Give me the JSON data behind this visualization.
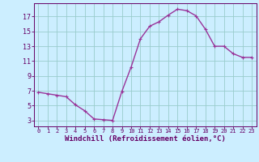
{
  "x": [
    0,
    1,
    2,
    3,
    4,
    5,
    6,
    7,
    8,
    9,
    10,
    11,
    12,
    13,
    14,
    15,
    16,
    17,
    18,
    19,
    20,
    21,
    22,
    23
  ],
  "y": [
    6.8,
    6.6,
    6.4,
    6.2,
    5.1,
    4.3,
    3.2,
    3.1,
    3.0,
    6.9,
    10.2,
    14.0,
    15.7,
    16.3,
    17.2,
    18.0,
    17.8,
    17.1,
    15.3,
    13.0,
    13.0,
    12.0,
    11.5,
    11.5
  ],
  "line_color": "#993399",
  "marker": "+",
  "bg_color": "#cceeff",
  "grid_color": "#99cccc",
  "axis_color": "#660066",
  "tick_color": "#660066",
  "xlabel": "Windchill (Refroidissement éolien,°C)",
  "xlabel_fontsize": 6.5,
  "ylabel_ticks": [
    3,
    5,
    7,
    9,
    11,
    13,
    15,
    17
  ],
  "xlim": [
    -0.5,
    23.5
  ],
  "ylim": [
    2.2,
    18.8
  ],
  "xticks": [
    0,
    1,
    2,
    3,
    4,
    5,
    6,
    7,
    8,
    9,
    10,
    11,
    12,
    13,
    14,
    15,
    16,
    17,
    18,
    19,
    20,
    21,
    22,
    23
  ],
  "linewidth": 1.0,
  "markersize": 3.5,
  "x_tick_fontsize": 5.0,
  "y_tick_fontsize": 6.0
}
